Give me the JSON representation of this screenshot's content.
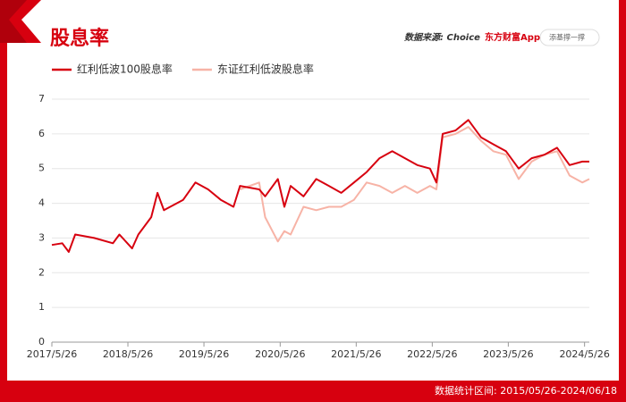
{
  "header": {
    "title": "股息率",
    "source": "数据来源: Choice",
    "brand": "东方财富App",
    "search": "添基撑一撑"
  },
  "footer": "数据统计区间: 2015/05/26-2024/06/18",
  "chart_data": {
    "type": "line",
    "x": [
      "2017/5/26",
      "2017/7",
      "2017/8",
      "2017/9",
      "2017/12",
      "2018/3",
      "2018/4",
      "2018/6",
      "2018/7",
      "2018/9",
      "2018/10",
      "2018/11",
      "2019/2",
      "2019/4",
      "2019/6",
      "2019/8",
      "2019/10",
      "2019/11",
      "2020/2",
      "2020/3",
      "2020/5",
      "2020/6",
      "2020/7",
      "2020/9",
      "2020/11",
      "2021/1",
      "2021/3",
      "2021/5",
      "2021/7",
      "2021/9",
      "2021/11",
      "2022/1",
      "2022/3",
      "2022/5",
      "2022/6",
      "2022/7",
      "2022/9",
      "2022/11",
      "2023/1",
      "2023/3",
      "2023/5",
      "2023/7",
      "2023/9",
      "2023/11",
      "2024/1",
      "2024/3",
      "2024/5",
      "2024/6/18"
    ],
    "series": [
      {
        "name": "红利低波100股息率",
        "color": "#d7000f",
        "values": [
          2.8,
          2.85,
          2.6,
          3.1,
          3.0,
          2.85,
          3.1,
          2.7,
          3.1,
          3.6,
          4.3,
          3.8,
          4.1,
          4.6,
          4.4,
          4.1,
          3.9,
          4.5,
          4.4,
          4.2,
          4.7,
          3.9,
          4.5,
          4.2,
          4.7,
          4.5,
          4.3,
          4.6,
          4.9,
          5.3,
          5.5,
          5.3,
          5.1,
          5.0,
          4.6,
          6.0,
          6.1,
          6.4,
          5.9,
          5.7,
          5.5,
          5.0,
          5.3,
          5.4,
          5.6,
          5.1,
          5.2,
          5.2
        ]
      },
      {
        "name": "东证红利低波股息率",
        "color": "#f7b3a6",
        "values": [
          null,
          null,
          null,
          null,
          null,
          null,
          null,
          null,
          null,
          null,
          null,
          null,
          null,
          null,
          null,
          null,
          null,
          4.4,
          4.6,
          3.6,
          2.9,
          3.2,
          3.1,
          3.9,
          3.8,
          3.9,
          3.9,
          4.1,
          4.6,
          4.5,
          4.3,
          4.5,
          4.3,
          4.5,
          4.4,
          5.9,
          6.0,
          6.2,
          5.8,
          5.5,
          5.4,
          4.7,
          5.2,
          5.4,
          5.5,
          4.8,
          4.6,
          4.7
        ]
      }
    ],
    "xlim": [
      "2017/5/26",
      "2024/6/18"
    ],
    "xticks": [
      "2017/5/26",
      "2018/5/26",
      "2019/5/26",
      "2020/5/26",
      "2021/5/26",
      "2022/5/26",
      "2023/5/26",
      "2024/5/26"
    ],
    "ylim": [
      0,
      7
    ],
    "yticks": [
      0,
      1,
      2,
      3,
      4,
      5,
      6,
      7
    ],
    "grid": true
  }
}
